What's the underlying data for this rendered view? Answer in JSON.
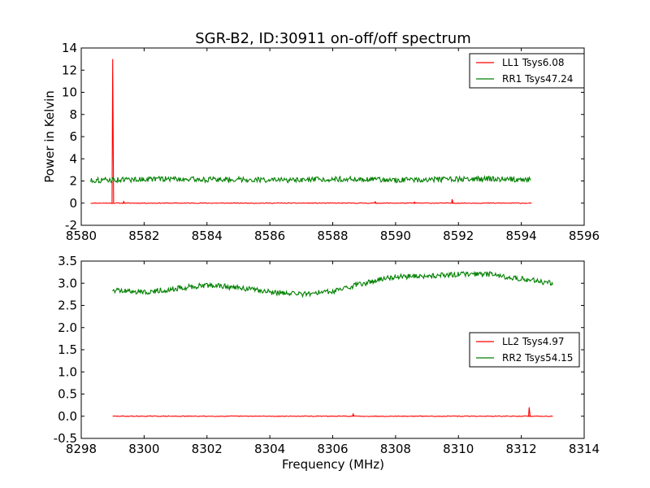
{
  "chart_data": [
    {
      "type": "line",
      "title": "SGR-B2, ID:30911 on-off/off spectrum",
      "xlabel": "",
      "ylabel": "Power in Kelvin",
      "xlim": [
        8580,
        8596
      ],
      "ylim": [
        -2,
        14
      ],
      "xticks": [
        8580,
        8582,
        8584,
        8586,
        8588,
        8590,
        8592,
        8594,
        8596
      ],
      "yticks": [
        -2,
        0,
        2,
        4,
        6,
        8,
        10,
        12,
        14
      ],
      "grid": false,
      "legend_position": "top-right",
      "series": [
        {
          "name": "LL1 Tsys6.08",
          "color": "#ff0000",
          "x_range": [
            8580.3,
            8594.3
          ],
          "baseline": [
            [
              8580.3,
              0.0
            ],
            [
              8594.3,
              0.0
            ]
          ],
          "spikes": [
            [
              8581.0,
              13.0
            ],
            [
              8581.35,
              0.15
            ],
            [
              8589.35,
              0.12
            ],
            [
              8590.6,
              0.1
            ],
            [
              8591.8,
              0.35
            ],
            [
              8594.3,
              0.0
            ]
          ]
        },
        {
          "name": "RR1 Tsys47.24",
          "color": "#008000",
          "x_range": [
            8580.3,
            8594.3
          ],
          "points": [
            [
              8580.3,
              2.05
            ],
            [
              8581.0,
              2.1
            ],
            [
              8582.0,
              2.15
            ],
            [
              8582.8,
              2.2
            ],
            [
              8584.0,
              2.12
            ],
            [
              8585.0,
              2.15
            ],
            [
              8586.0,
              2.08
            ],
            [
              8587.0,
              2.05
            ],
            [
              8588.0,
              2.18
            ],
            [
              8589.0,
              2.15
            ],
            [
              8590.0,
              2.08
            ],
            [
              8591.0,
              2.12
            ],
            [
              8592.0,
              2.15
            ],
            [
              8593.0,
              2.2
            ],
            [
              8594.3,
              2.1
            ]
          ]
        }
      ]
    },
    {
      "type": "line",
      "title": "",
      "xlabel": "Frequency (MHz)",
      "ylabel": "",
      "xlim": [
        8298,
        8314
      ],
      "ylim": [
        -0.5,
        3.5
      ],
      "xticks": [
        8298,
        8300,
        8302,
        8304,
        8306,
        8308,
        8310,
        8312,
        8314
      ],
      "yticks": [
        -0.5,
        0.0,
        0.5,
        1.0,
        1.5,
        2.0,
        2.5,
        3.0,
        3.5
      ],
      "grid": false,
      "legend_position": "center-right",
      "series": [
        {
          "name": "LL2 Tsys4.97",
          "color": "#ff0000",
          "x_range": [
            8299.0,
            8313.0
          ],
          "baseline": [
            [
              8299.0,
              0.0
            ],
            [
              8313.0,
              0.0
            ]
          ],
          "spikes": [
            [
              8306.65,
              0.05
            ],
            [
              8312.25,
              0.2
            ]
          ]
        },
        {
          "name": "RR2 Tsys54.15",
          "color": "#008000",
          "x_range": [
            8299.0,
            8313.0
          ],
          "points": [
            [
              8299.0,
              2.85
            ],
            [
              8300.0,
              2.8
            ],
            [
              8301.0,
              2.88
            ],
            [
              8302.0,
              2.96
            ],
            [
              8303.0,
              2.9
            ],
            [
              8304.0,
              2.8
            ],
            [
              8305.0,
              2.75
            ],
            [
              8306.0,
              2.82
            ],
            [
              8307.0,
              3.0
            ],
            [
              8308.0,
              3.15
            ],
            [
              8309.0,
              3.16
            ],
            [
              8310.0,
              3.2
            ],
            [
              8311.0,
              3.2
            ],
            [
              8312.0,
              3.1
            ],
            [
              8313.0,
              3.0
            ]
          ]
        }
      ]
    }
  ]
}
